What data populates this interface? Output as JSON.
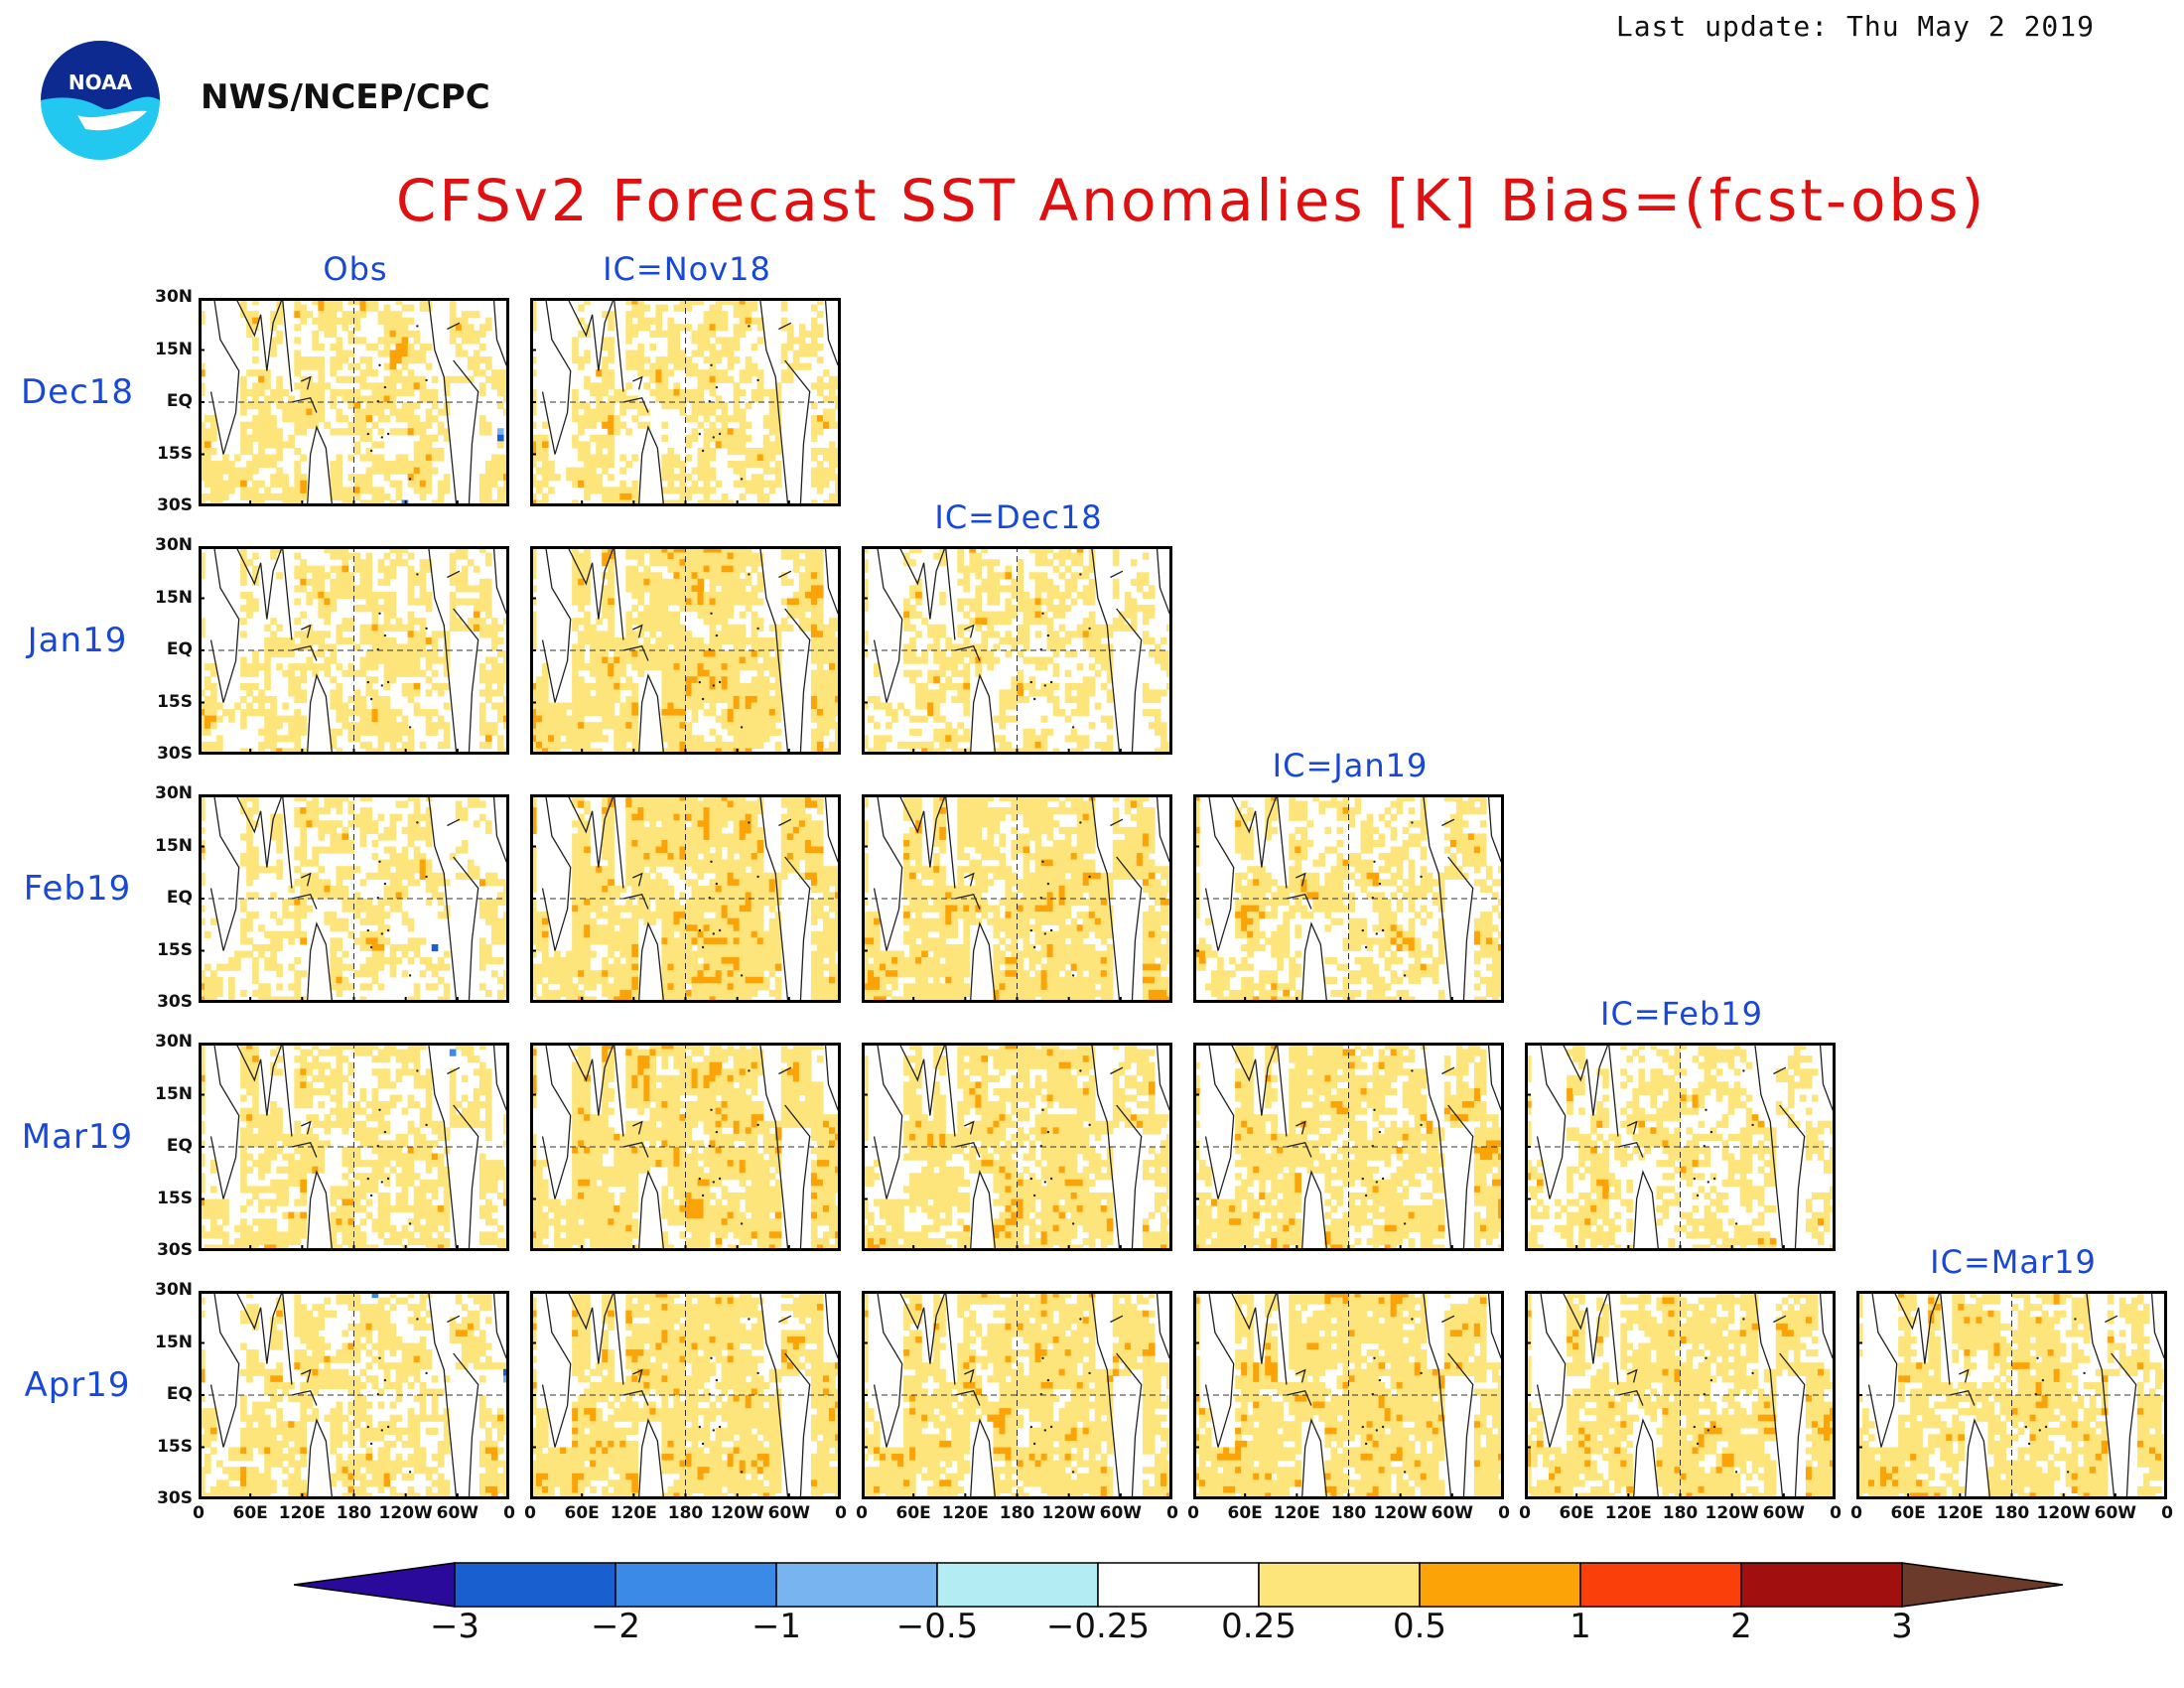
{
  "header": {
    "last_update": "Last update: Thu May  2 2019",
    "agency": "NWS/NCEP/CPC",
    "logo_text": "NOAA",
    "title": "CFSv2 Forecast SST Anomalies [K] Bias=(fcst-obs)"
  },
  "columns": [
    "Obs",
    "IC=Nov18",
    "IC=Dec18",
    "IC=Jan19",
    "IC=Feb19",
    "IC=Mar19"
  ],
  "rows": [
    "Dec18",
    "Jan19",
    "Feb19",
    "Mar19",
    "Apr19"
  ],
  "lat_ticks": [
    "30N",
    "15N",
    "EQ",
    "15S",
    "30S"
  ],
  "lon_ticks": [
    "0",
    "60E",
    "120E",
    "180",
    "120W",
    "60W",
    "0"
  ],
  "panels": [
    {
      "row": 0,
      "col": 0,
      "palette": "obs",
      "warmth": 0.55
    },
    {
      "row": 0,
      "col": 1,
      "palette": "fcst",
      "warmth": 0.45
    },
    {
      "row": 1,
      "col": 0,
      "palette": "obs",
      "warmth": 0.5
    },
    {
      "row": 1,
      "col": 1,
      "palette": "fcst",
      "warmth": 0.65
    },
    {
      "row": 1,
      "col": 2,
      "palette": "fcst",
      "warmth": 0.4
    },
    {
      "row": 2,
      "col": 0,
      "palette": "obs",
      "warmth": 0.5
    },
    {
      "row": 2,
      "col": 1,
      "palette": "fcst",
      "warmth": 0.72
    },
    {
      "row": 2,
      "col": 2,
      "palette": "fcst",
      "warmth": 0.65
    },
    {
      "row": 2,
      "col": 3,
      "palette": "fcst",
      "warmth": 0.45
    },
    {
      "row": 3,
      "col": 0,
      "palette": "obs",
      "warmth": 0.58
    },
    {
      "row": 3,
      "col": 1,
      "palette": "fcst",
      "warmth": 0.68
    },
    {
      "row": 3,
      "col": 2,
      "palette": "fcst",
      "warmth": 0.6
    },
    {
      "row": 3,
      "col": 3,
      "palette": "fcst",
      "warmth": 0.62
    },
    {
      "row": 3,
      "col": 4,
      "palette": "fcst",
      "warmth": 0.4
    },
    {
      "row": 4,
      "col": 0,
      "palette": "obs",
      "warmth": 0.58
    },
    {
      "row": 4,
      "col": 1,
      "palette": "fcst",
      "warmth": 0.68
    },
    {
      "row": 4,
      "col": 2,
      "palette": "fcst",
      "warmth": 0.65
    },
    {
      "row": 4,
      "col": 3,
      "palette": "fcst",
      "warmth": 0.68
    },
    {
      "row": 4,
      "col": 4,
      "palette": "fcst",
      "warmth": 0.62
    },
    {
      "row": 4,
      "col": 5,
      "palette": "fcst",
      "warmth": 0.55
    }
  ],
  "colorbar": {
    "labels": [
      "−3",
      "−2",
      "−1",
      "−0.5",
      "−0.25",
      "0.25",
      "0.5",
      "1",
      "2",
      "3"
    ],
    "colors": [
      "#2a0a9a",
      "#1a5fd0",
      "#3c8ae8",
      "#78b4f0",
      "#b4ecf4",
      "#ffffff",
      "#fde57c",
      "#fba307",
      "#fb3f0a",
      "#a20f0f",
      "#6b3a2a"
    ]
  }
}
